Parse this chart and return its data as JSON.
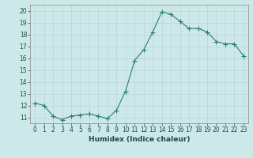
{
  "x": [
    0,
    1,
    2,
    3,
    4,
    5,
    6,
    7,
    8,
    9,
    10,
    11,
    12,
    13,
    14,
    15,
    16,
    17,
    18,
    19,
    20,
    21,
    22,
    23
  ],
  "y": [
    12.2,
    12.0,
    11.1,
    10.8,
    11.1,
    11.2,
    11.3,
    11.1,
    10.9,
    11.6,
    13.2,
    15.8,
    16.7,
    18.2,
    19.9,
    19.7,
    19.1,
    18.5,
    18.5,
    18.2,
    17.4,
    17.2,
    17.2,
    16.2
  ],
  "line_color": "#2e7d6e",
  "marker_color": "#2e7d6e",
  "bg_color": "#cce8e8",
  "grid_color": "#b8d4d4",
  "xlabel": "Humidex (Indice chaleur)",
  "xlim": [
    -0.5,
    23.5
  ],
  "ylim": [
    10.5,
    20.5
  ],
  "yticks": [
    11,
    12,
    13,
    14,
    15,
    16,
    17,
    18,
    19,
    20
  ],
  "xticks": [
    0,
    1,
    2,
    3,
    4,
    5,
    6,
    7,
    8,
    9,
    10,
    11,
    12,
    13,
    14,
    15,
    16,
    17,
    18,
    19,
    20,
    21,
    22,
    23
  ],
  "tick_label_fontsize": 5.5,
  "xlabel_fontsize": 6.5,
  "marker_size": 2.0,
  "line_width": 0.8
}
